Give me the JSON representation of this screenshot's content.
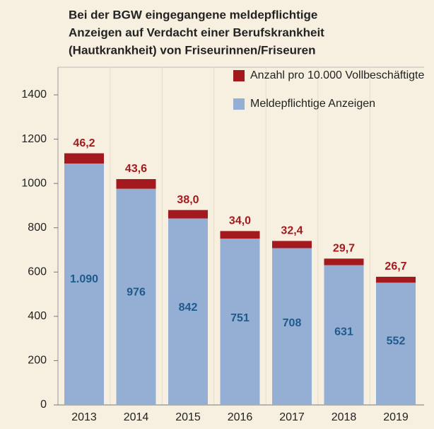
{
  "chart_data": {
    "type": "stacked_bar",
    "title": [
      "Bei der BGW eingegangene meldepflichtige",
      "Anzeigen auf Verdacht einer Berufskrankheit",
      "(Hautkrankheit) von Friseurinnen/Friseuren"
    ],
    "categories": [
      "2013",
      "2014",
      "2015",
      "2016",
      "2017",
      "2018",
      "2019"
    ],
    "series": [
      {
        "name": "Meldepflichtige Anzeigen",
        "color": "#95afd4",
        "values": [
          1090,
          976,
          842,
          751,
          708,
          631,
          552
        ],
        "value_labels": [
          "1.090",
          "976",
          "842",
          "751",
          "708",
          "631",
          "552"
        ],
        "label_color": "#1e5a8c"
      },
      {
        "name": "Anzahl pro 10.000 Vollbeschäftigte",
        "color": "#a3191e",
        "values": [
          46.2,
          43.6,
          38.0,
          34.0,
          32.4,
          29.7,
          26.7
        ],
        "value_labels": [
          "46,2",
          "43,6",
          "38,0",
          "34,0",
          "32,4",
          "29,7",
          "26,7"
        ],
        "label_color": "#a3191e"
      }
    ],
    "ylim": [
      0,
      1400
    ],
    "yticks": [
      0,
      200,
      400,
      600,
      800,
      1000,
      1200,
      1400
    ],
    "legend": "top-right"
  }
}
